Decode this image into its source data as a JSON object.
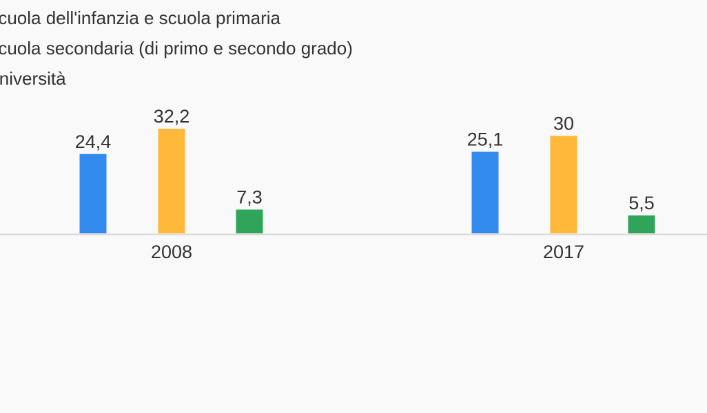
{
  "chart_data": {
    "type": "bar",
    "categories": [
      "2008",
      "2017"
    ],
    "series": [
      {
        "name": "Scuola dell'infanzia e scuola primaria",
        "color": "#338aed",
        "values": [
          24.4,
          25.1
        ],
        "labels": [
          "24,4",
          "25,1"
        ]
      },
      {
        "name": "Scuola secondaria (di primo e secondo grado)",
        "color": "#ffb83a",
        "values": [
          32.2,
          30
        ],
        "labels": [
          "32,2",
          "30"
        ]
      },
      {
        "name": "Università",
        "color": "#31a45b",
        "values": [
          7.3,
          5.5
        ],
        "labels": [
          "7,3",
          "5,5"
        ]
      }
    ],
    "ylim": [
      0,
      40
    ],
    "grid": false,
    "legend_position": "top-left",
    "axis_color": "#d6d6d6"
  }
}
